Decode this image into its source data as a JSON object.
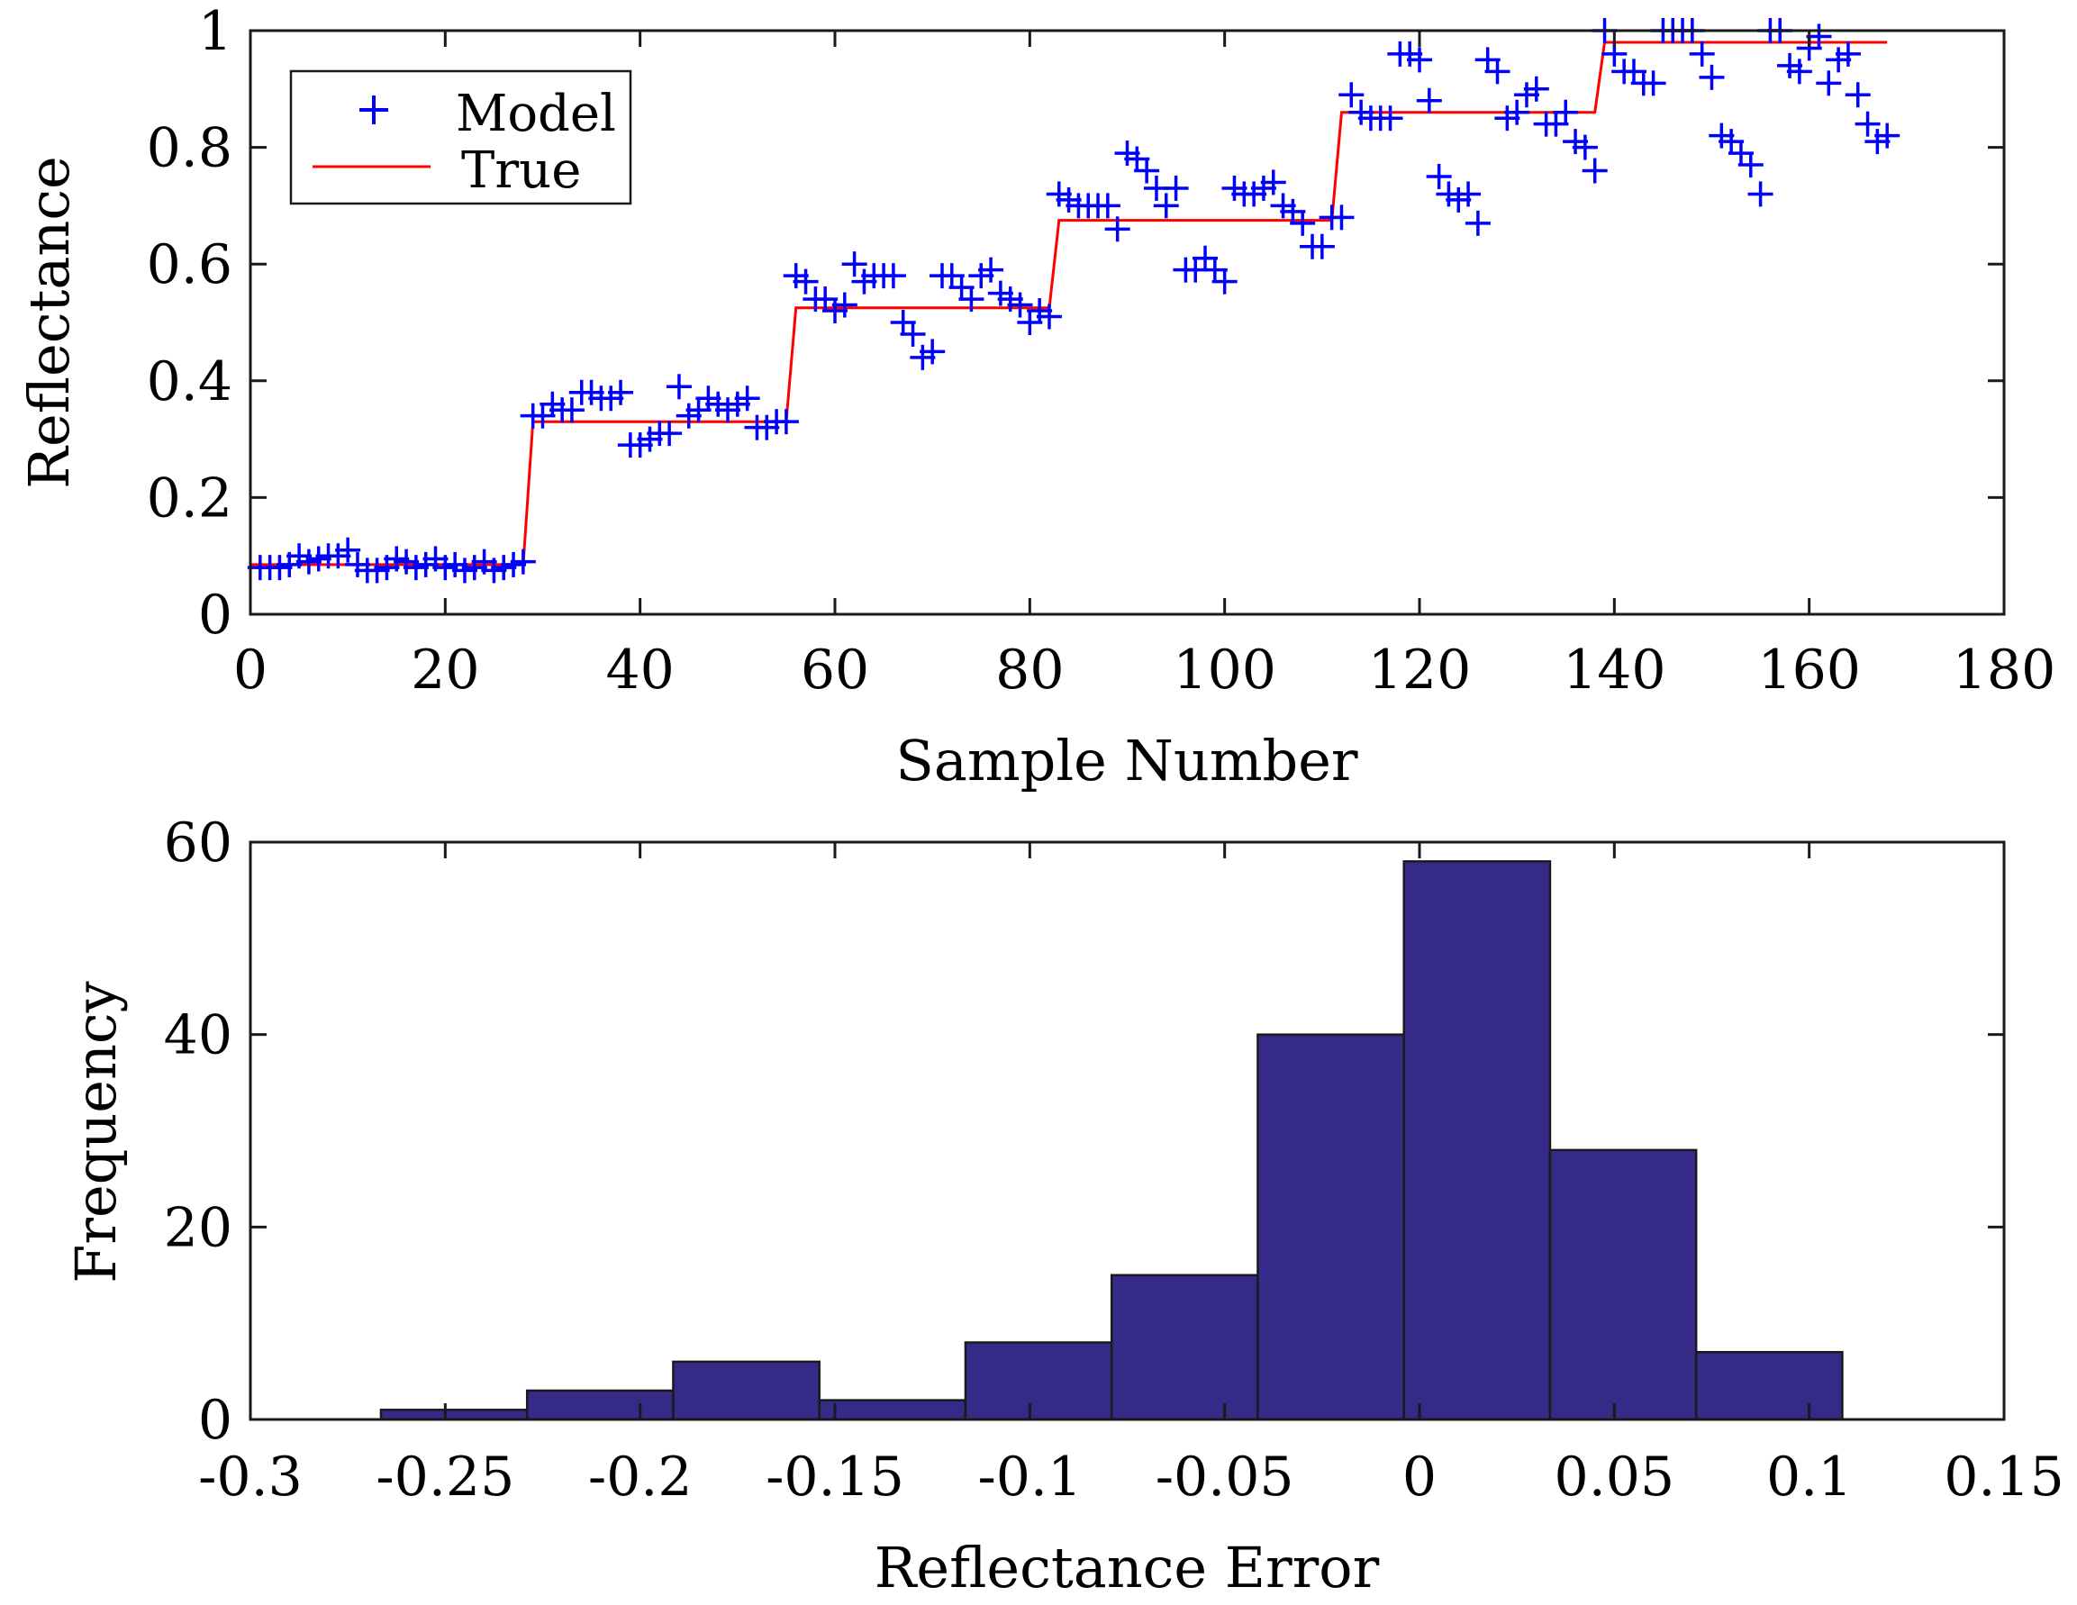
{
  "colors": {
    "model": "#0000ff",
    "true_line": "#ff0000",
    "bar_fill": "#352a87",
    "bar_stroke": "#1a1a1a",
    "axes": "#1a1a1a",
    "background": "#ffffff"
  },
  "chart_data": [
    {
      "type": "scatter",
      "xlabel": "Sample Number",
      "ylabel": "Reflectance",
      "xlim": [
        0,
        180
      ],
      "ylim": [
        0,
        1
      ],
      "xticks": [
        0,
        20,
        40,
        60,
        80,
        100,
        120,
        140,
        160,
        180
      ],
      "yticks": [
        0,
        0.2,
        0.4,
        0.6,
        0.8,
        1
      ],
      "xtick_labels": [
        "0",
        "20",
        "40",
        "60",
        "80",
        "100",
        "120",
        "140",
        "160",
        "180"
      ],
      "ytick_labels": [
        "0",
        "0.2",
        "0.4",
        "0.6",
        "0.8",
        "1"
      ],
      "legend": {
        "position": "top-left",
        "entries": [
          "Model",
          "True"
        ]
      },
      "series": [
        {
          "name": "Model",
          "marker": "+",
          "x": [
            1,
            2,
            3,
            4,
            5,
            6,
            7,
            8,
            9,
            10,
            11,
            12,
            13,
            14,
            15,
            16,
            17,
            18,
            19,
            20,
            21,
            22,
            23,
            24,
            25,
            26,
            27,
            28,
            29,
            30,
            31,
            32,
            33,
            34,
            35,
            36,
            37,
            38,
            39,
            40,
            41,
            42,
            43,
            44,
            45,
            46,
            47,
            48,
            49,
            50,
            51,
            52,
            53,
            54,
            55,
            56,
            57,
            58,
            59,
            60,
            61,
            62,
            63,
            64,
            65,
            66,
            67,
            68,
            69,
            70,
            71,
            72,
            73,
            74,
            75,
            76,
            77,
            78,
            79,
            80,
            81,
            82,
            83,
            84,
            85,
            86,
            87,
            88,
            89,
            90,
            91,
            92,
            93,
            94,
            95,
            96,
            97,
            98,
            99,
            100,
            101,
            102,
            103,
            104,
            105,
            106,
            107,
            108,
            109,
            110,
            111,
            112,
            113,
            114,
            115,
            116,
            117,
            118,
            119,
            120,
            121,
            122,
            123,
            124,
            125,
            126,
            127,
            128,
            129,
            130,
            131,
            132,
            133,
            134,
            135,
            136,
            137,
            138,
            139,
            140,
            141,
            142,
            143,
            144,
            145,
            146,
            147,
            148,
            149,
            150,
            151,
            152,
            153,
            154,
            155,
            156,
            157,
            158,
            159,
            160,
            161,
            162,
            163,
            164,
            165,
            166,
            167,
            168
          ],
          "y": [
            0.08,
            0.08,
            0.08,
            0.085,
            0.1,
            0.09,
            0.095,
            0.1,
            0.1,
            0.11,
            0.085,
            0.075,
            0.075,
            0.08,
            0.095,
            0.09,
            0.08,
            0.085,
            0.095,
            0.08,
            0.085,
            0.075,
            0.08,
            0.09,
            0.075,
            0.08,
            0.085,
            0.09,
            0.34,
            0.34,
            0.36,
            0.35,
            0.35,
            0.38,
            0.38,
            0.37,
            0.37,
            0.38,
            0.29,
            0.29,
            0.3,
            0.31,
            0.31,
            0.39,
            0.34,
            0.35,
            0.37,
            0.36,
            0.35,
            0.36,
            0.37,
            0.32,
            0.32,
            0.33,
            0.33,
            0.58,
            0.57,
            0.54,
            0.54,
            0.52,
            0.53,
            0.6,
            0.57,
            0.58,
            0.58,
            0.58,
            0.5,
            0.48,
            0.44,
            0.45,
            0.58,
            0.58,
            0.56,
            0.54,
            0.58,
            0.59,
            0.55,
            0.54,
            0.53,
            0.5,
            0.52,
            0.51,
            0.72,
            0.71,
            0.7,
            0.7,
            0.7,
            0.7,
            0.66,
            0.79,
            0.78,
            0.76,
            0.73,
            0.7,
            0.73,
            0.59,
            0.59,
            0.61,
            0.59,
            0.57,
            0.73,
            0.72,
            0.72,
            0.73,
            0.74,
            0.7,
            0.69,
            0.67,
            0.63,
            0.63,
            0.68,
            0.68,
            0.89,
            0.86,
            0.85,
            0.85,
            0.85,
            0.96,
            0.96,
            0.95,
            0.88,
            0.75,
            0.72,
            0.71,
            0.72,
            0.67,
            0.95,
            0.93,
            0.85,
            0.86,
            0.89,
            0.9,
            0.84,
            0.84,
            0.86,
            0.81,
            0.8,
            0.76,
            1.0,
            0.96,
            0.93,
            0.93,
            0.91,
            0.91,
            1.0,
            1.0,
            1.0,
            1.0,
            0.96,
            0.92,
            0.82,
            0.81,
            0.79,
            0.77,
            0.72,
            1.0,
            1.0,
            0.94,
            0.93,
            0.97,
            0.99,
            0.91,
            0.95,
            0.96,
            0.89,
            0.84,
            0.81,
            0.82
          ]
        },
        {
          "name": "True",
          "style": "line",
          "x": [
            0,
            28,
            29,
            55,
            56,
            82,
            83,
            111,
            112,
            138,
            139,
            168
          ],
          "y": [
            0.085,
            0.085,
            0.33,
            0.33,
            0.525,
            0.525,
            0.675,
            0.675,
            0.86,
            0.86,
            0.98,
            0.98
          ]
        }
      ]
    },
    {
      "type": "bar",
      "subtype": "histogram",
      "xlabel": "Reflectance Error",
      "ylabel": "Frequency",
      "xlim": [
        -0.3,
        0.15
      ],
      "ylim": [
        0,
        60
      ],
      "xticks": [
        -0.3,
        -0.25,
        -0.2,
        -0.15,
        -0.1,
        -0.05,
        0,
        0.05,
        0.1,
        0.15
      ],
      "yticks": [
        0,
        20,
        40,
        60
      ],
      "xtick_labels": [
        "-0.3",
        "-0.25",
        "-0.2",
        "-0.15",
        "-0.1",
        "-0.05",
        "0",
        "0.05",
        "0.1",
        "0.15"
      ],
      "ytick_labels": [
        "0",
        "20",
        "40",
        "60"
      ],
      "bin_edges": [
        -0.2665,
        -0.229,
        -0.1915,
        -0.154,
        -0.1165,
        -0.079,
        -0.0415,
        -0.004,
        0.0335,
        0.071,
        0.1085
      ],
      "values": [
        1,
        3,
        6,
        2,
        8,
        15,
        40,
        58,
        28,
        7
      ]
    }
  ]
}
